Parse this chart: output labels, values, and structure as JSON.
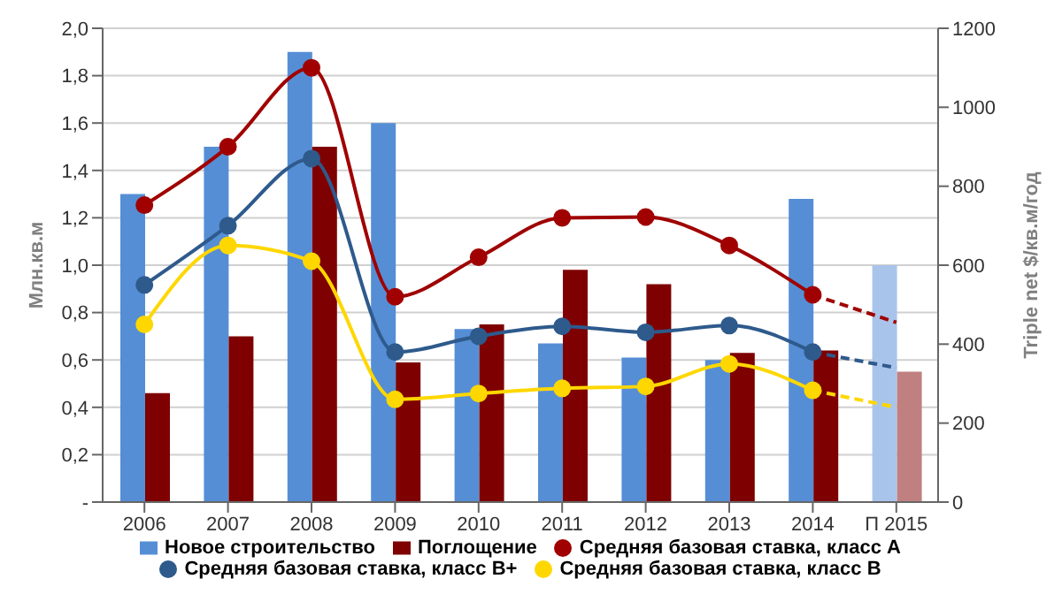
{
  "chart_data": {
    "type": "bar",
    "categories": [
      "2006",
      "2007",
      "2008",
      "2009",
      "2010",
      "2011",
      "2012",
      "2013",
      "2014",
      "П 2015"
    ],
    "ylabel": "Млн.кв.м",
    "y2label": "Triple net $/кв.м/год",
    "ylim": [
      0,
      2
    ],
    "yticks": [
      {
        "value": 0,
        "label": "-"
      },
      {
        "value": 0.2,
        "label": "0,2"
      },
      {
        "value": 0.4,
        "label": "0,4"
      },
      {
        "value": 0.6,
        "label": "0,6"
      },
      {
        "value": 0.8,
        "label": "0,8"
      },
      {
        "value": 1,
        "label": "1,0"
      },
      {
        "value": 1.2,
        "label": "1,2"
      },
      {
        "value": 1.4,
        "label": "1,4"
      },
      {
        "value": 1.6,
        "label": "1,6"
      },
      {
        "value": 1.8,
        "label": "1,8"
      },
      {
        "value": 2,
        "label": "2,0"
      }
    ],
    "y2lim": [
      0,
      1200
    ],
    "y2ticks": [
      0,
      200,
      400,
      600,
      800,
      1000,
      1200
    ],
    "grid": "y",
    "legend": "bottom",
    "series": [
      {
        "name": "Новое строительство",
        "color": "#558ed5",
        "colors": [
          "#558ed5",
          "#558ed5",
          "#558ed5",
          "#558ed5",
          "#558ed5",
          "#558ed5",
          "#558ed5",
          "#558ed5",
          "#558ed5",
          "#a9c4eb"
        ],
        "values": [
          1.3,
          1.5,
          1.9,
          1.6,
          0.73,
          0.67,
          0.61,
          0.6,
          1.28,
          1.0
        ]
      },
      {
        "name": "Поглощение",
        "color": "#7f0000",
        "colors": [
          "#7f0000",
          "#7f0000",
          "#7f0000",
          "#7f0000",
          "#7f0000",
          "#7f0000",
          "#7f0000",
          "#7f0000",
          "#7f0000",
          "#c08080"
        ],
        "values": [
          0.46,
          0.7,
          1.5,
          0.59,
          0.75,
          0.98,
          0.92,
          0.63,
          0.64,
          0.55
        ]
      },
      {
        "name": "Средняя базовая ставка, класс А",
        "type": "line",
        "axis": "y2",
        "color": "#a00000",
        "marker": "circle",
        "line_style": "solid",
        "values": [
          752,
          900,
          1100,
          520,
          620,
          720,
          722,
          650,
          525,
          null
        ]
      },
      {
        "name": "Средняя базовая ставка, класс В+",
        "type": "line",
        "axis": "y2",
        "color": "#2e5a8c",
        "marker": "circle",
        "line_style": "solid",
        "values": [
          550,
          700,
          870,
          380,
          420,
          445,
          430,
          447,
          380,
          null
        ]
      },
      {
        "name": "Средняя базовая ставка, класс В",
        "type": "line",
        "axis": "y2",
        "color": "#ffd700",
        "marker": "circle",
        "line_style": "solid",
        "values": [
          450,
          650,
          610,
          260,
          275,
          288,
          293,
          350,
          283,
          null
        ]
      },
      {
        "type": "line",
        "axis": "y2",
        "color": "#a00000",
        "marker": "none",
        "line_style": "dashed",
        "values": [
          null,
          null,
          null,
          null,
          null,
          null,
          null,
          null,
          525,
          455
        ]
      },
      {
        "type": "line",
        "axis": "y2",
        "color": "#2e5a8c",
        "marker": "none",
        "line_style": "dashed",
        "values": [
          null,
          null,
          null,
          null,
          null,
          null,
          null,
          null,
          380,
          340
        ]
      },
      {
        "type": "line",
        "axis": "y2",
        "color": "#ffd700",
        "marker": "none",
        "line_style": "dashed",
        "values": [
          null,
          null,
          null,
          null,
          null,
          null,
          null,
          null,
          283,
          240
        ]
      }
    ]
  }
}
